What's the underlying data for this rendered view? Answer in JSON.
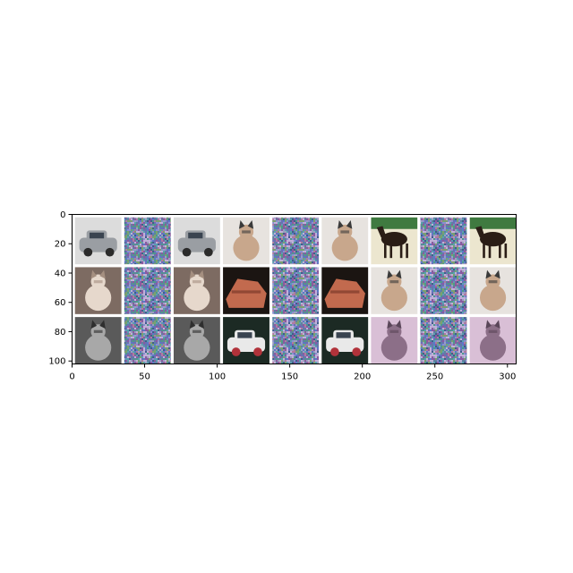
{
  "chart_data": {
    "type": "image-grid",
    "title": "",
    "xlabel": "",
    "ylabel": "",
    "xlim": [
      0,
      306
    ],
    "ylim": [
      102,
      0
    ],
    "xticks": [
      0,
      50,
      100,
      150,
      200,
      250,
      300
    ],
    "yticks": [
      0,
      20,
      40,
      60,
      80,
      100
    ],
    "xtick_labels": [
      "0",
      "50",
      "100",
      "150",
      "200",
      "250",
      "300"
    ],
    "ytick_labels": [
      "0",
      "20",
      "40",
      "60",
      "80",
      "100"
    ],
    "grid": false,
    "legend": "none",
    "tile_size": 32,
    "tile_gap": 2,
    "background_color": "#ffffff",
    "rows": [
      {
        "tiles": [
          {
            "kind": "image",
            "subject": "car",
            "bg": "#dcdcdc",
            "main": "#9a9ea3",
            "accent": "#2b2b2b"
          },
          {
            "kind": "noise"
          },
          {
            "kind": "image",
            "subject": "car",
            "bg": "#dcdcdc",
            "main": "#9a9ea3",
            "accent": "#2b2b2b"
          },
          {
            "kind": "image",
            "subject": "cat",
            "bg": "#e7e3df",
            "main": "#c8a78c",
            "accent": "#3a3a3a"
          },
          {
            "kind": "noise"
          },
          {
            "kind": "image",
            "subject": "cat",
            "bg": "#e7e3df",
            "main": "#c8a78c",
            "accent": "#3a3a3a"
          },
          {
            "kind": "image",
            "subject": "horse",
            "bg": "#ece6cf",
            "main": "#2a1d16",
            "accent": "#3f7a40"
          },
          {
            "kind": "noise"
          },
          {
            "kind": "image",
            "subject": "horse",
            "bg": "#ece6cf",
            "main": "#2a1d16",
            "accent": "#3f7a40"
          }
        ]
      },
      {
        "tiles": [
          {
            "kind": "image",
            "subject": "cat",
            "bg": "#7d6b62",
            "main": "#e6d8cc",
            "accent": "#a58f80"
          },
          {
            "kind": "noise"
          },
          {
            "kind": "image",
            "subject": "cat",
            "bg": "#7d6b62",
            "main": "#e6d8cc",
            "accent": "#a58f80"
          },
          {
            "kind": "image",
            "subject": "object",
            "bg": "#1b1512",
            "main": "#c26a4e",
            "accent": "#7c3b29"
          },
          {
            "kind": "noise"
          },
          {
            "kind": "image",
            "subject": "object",
            "bg": "#1b1512",
            "main": "#c26a4e",
            "accent": "#7c3b29"
          },
          {
            "kind": "image",
            "subject": "cat",
            "bg": "#e7e3df",
            "main": "#c8a78c",
            "accent": "#3a3a3a"
          },
          {
            "kind": "noise"
          },
          {
            "kind": "image",
            "subject": "cat",
            "bg": "#e7e3df",
            "main": "#c8a78c",
            "accent": "#3a3a3a"
          }
        ]
      },
      {
        "tiles": [
          {
            "kind": "image",
            "subject": "cat",
            "bg": "#5a5a5a",
            "main": "#a8a8a8",
            "accent": "#2e2e2e"
          },
          {
            "kind": "noise"
          },
          {
            "kind": "image",
            "subject": "cat",
            "bg": "#5a5a5a",
            "main": "#a8a8a8",
            "accent": "#2e2e2e"
          },
          {
            "kind": "image",
            "subject": "car",
            "bg": "#1c2a24",
            "main": "#e9e9e9",
            "accent": "#b1323a"
          },
          {
            "kind": "noise"
          },
          {
            "kind": "image",
            "subject": "car",
            "bg": "#1c2a24",
            "main": "#e9e9e9",
            "accent": "#b1323a"
          },
          {
            "kind": "image",
            "subject": "cat",
            "bg": "#d9bfd6",
            "main": "#8c6f88",
            "accent": "#5a4659"
          },
          {
            "kind": "noise"
          },
          {
            "kind": "image",
            "subject": "cat",
            "bg": "#d9bfd6",
            "main": "#8c6f88",
            "accent": "#5a4659"
          }
        ]
      }
    ]
  }
}
